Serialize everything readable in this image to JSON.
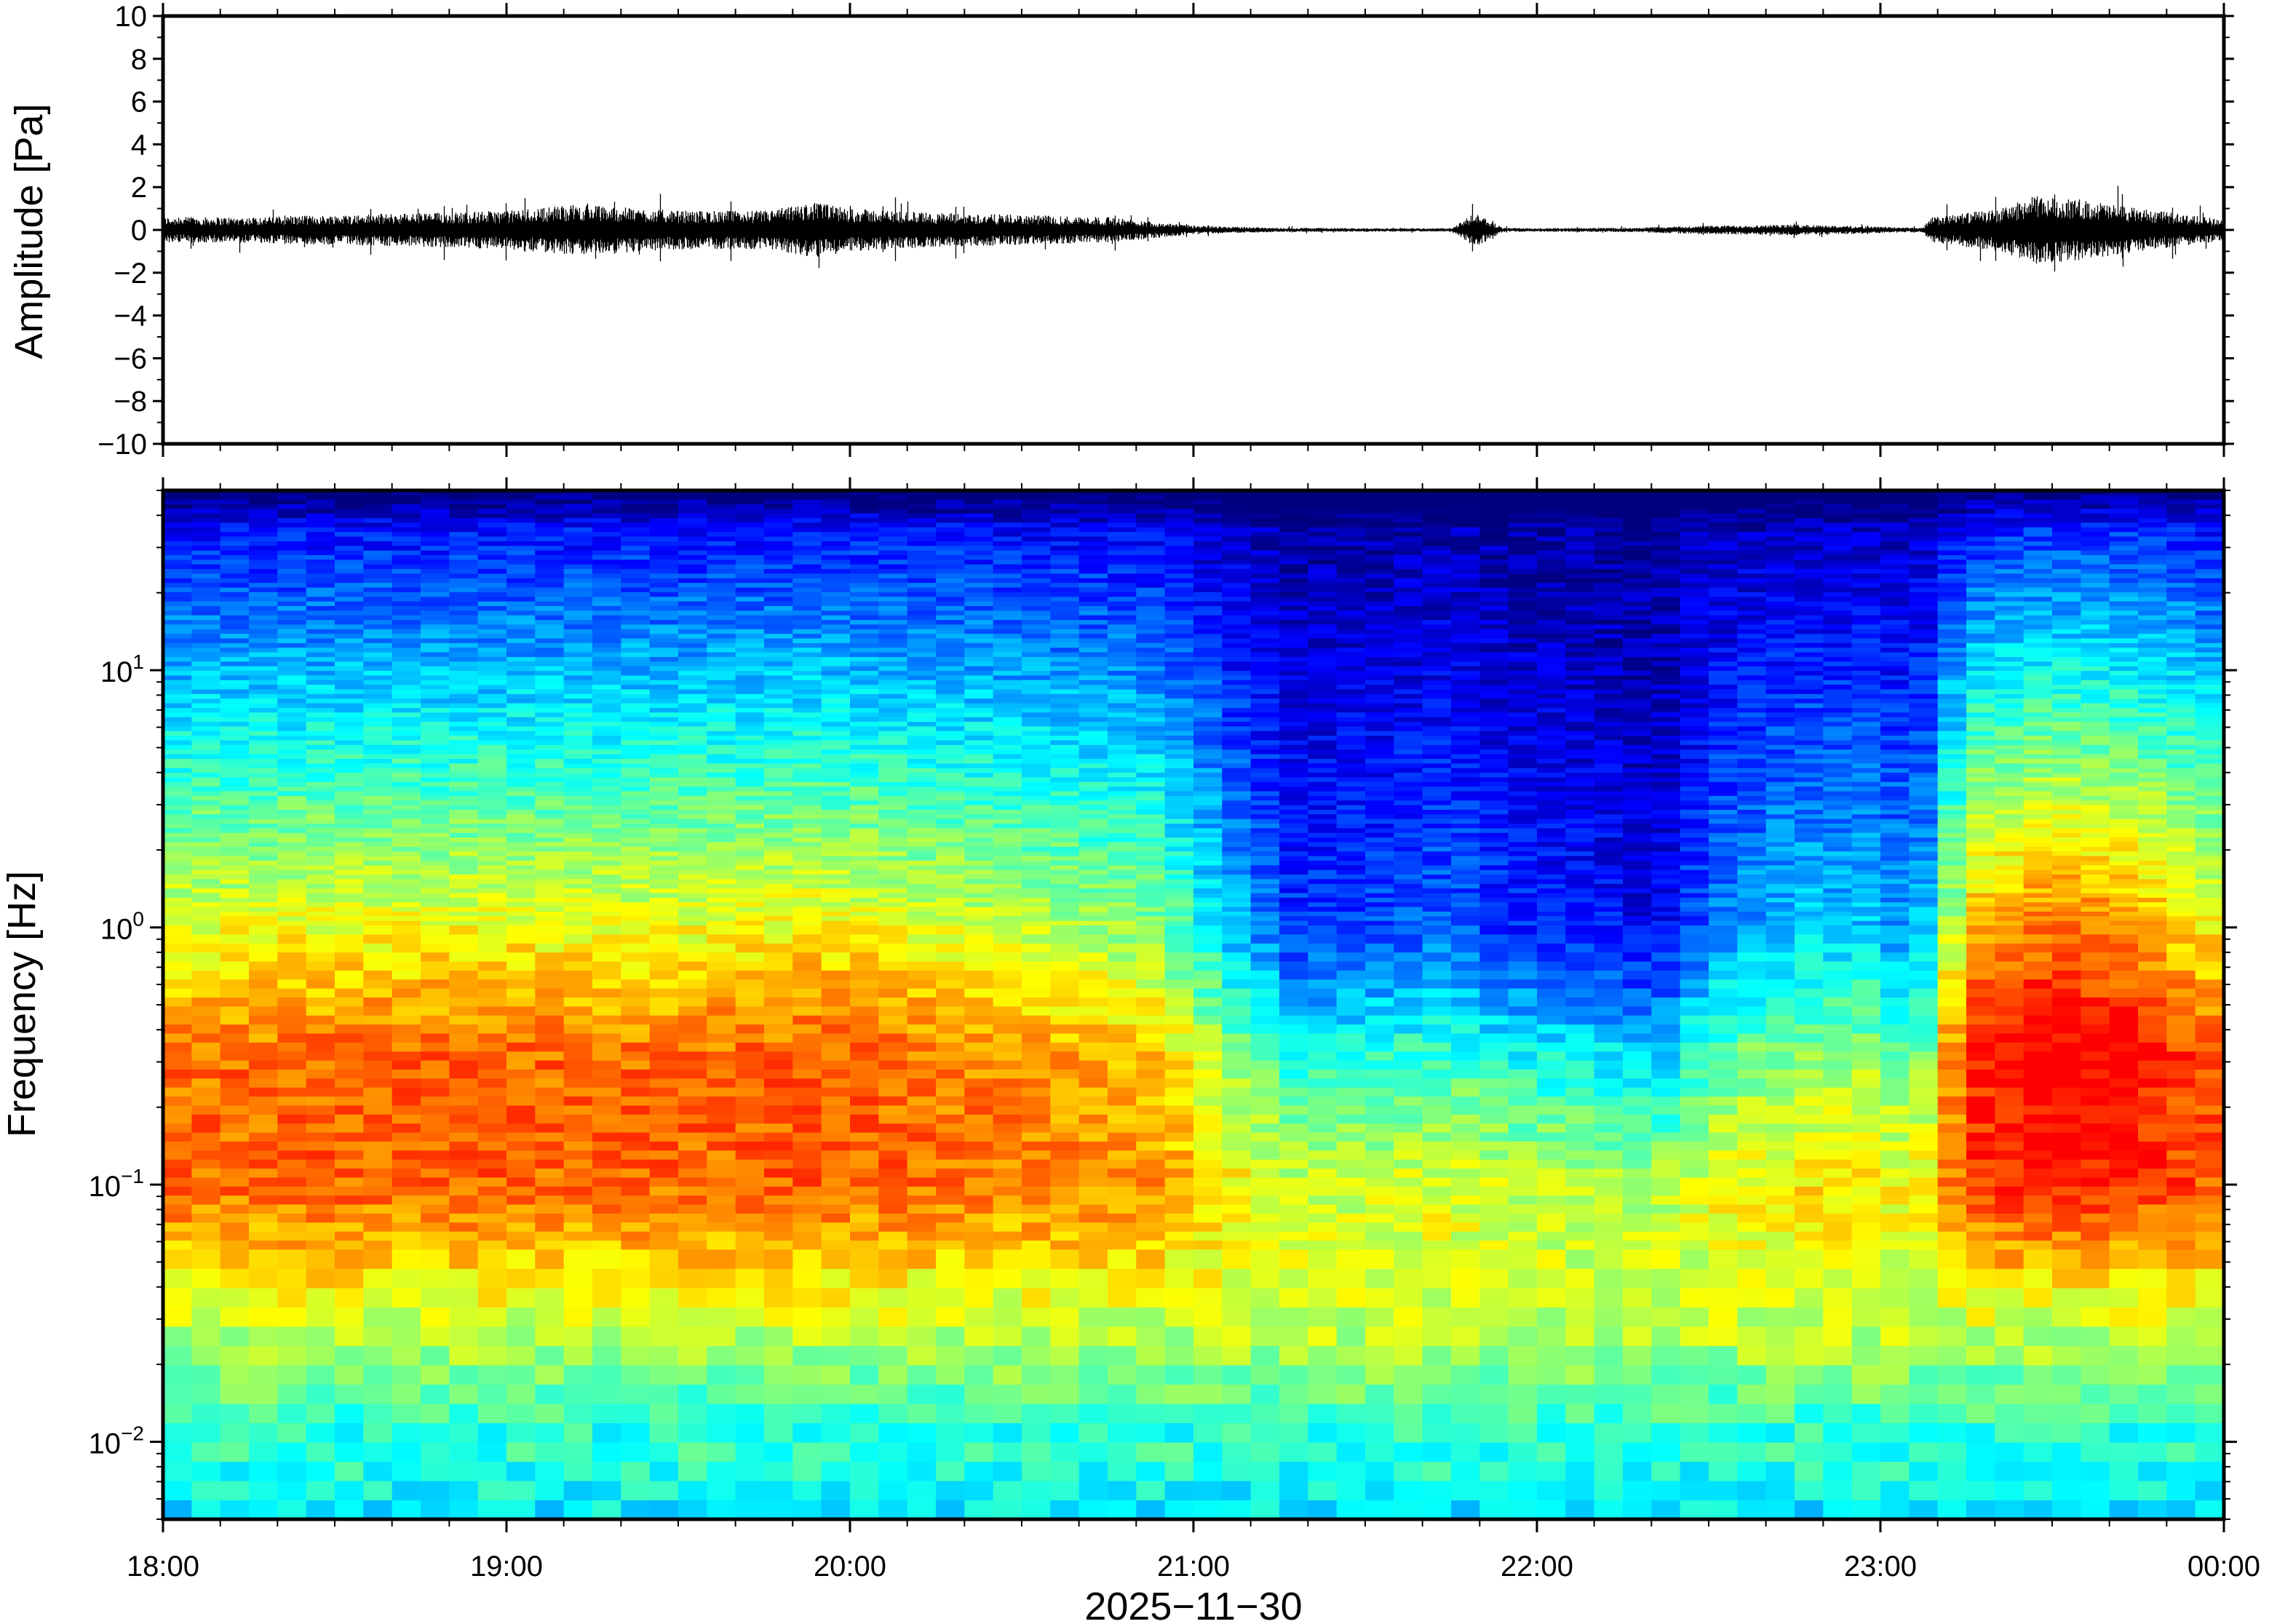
{
  "chart_data": [
    {
      "type": "line",
      "panel": "waveform",
      "ylabel": "Amplitude [Pa]",
      "ylim": [
        -10,
        10
      ],
      "yticks": [
        10,
        8,
        6,
        4,
        2,
        0,
        -2,
        -4,
        -6,
        -8,
        -10
      ],
      "ytick_labels": [
        "10",
        "8",
        "6",
        "4",
        "2",
        "0",
        "−2",
        "−4",
        "−6",
        "−8",
        "−10"
      ],
      "xlim": [
        "18:00",
        "00:00"
      ],
      "trace_color": "#000000",
      "envelope": {
        "x_hours": [
          18.0,
          18.25,
          18.5,
          18.75,
          19.0,
          19.2,
          19.5,
          19.75,
          19.9,
          20.0,
          20.25,
          20.5,
          20.75,
          21.0,
          21.25,
          21.5,
          21.75,
          21.82,
          21.9,
          22.0,
          22.25,
          22.5,
          22.75,
          23.0,
          23.12,
          23.15,
          23.35,
          23.45,
          23.6,
          23.75,
          23.9,
          24.0
        ],
        "amplitude_pa": [
          0.6,
          0.6,
          0.7,
          0.8,
          0.9,
          1.2,
          0.9,
          0.9,
          1.3,
          1.0,
          0.8,
          0.7,
          0.6,
          0.2,
          0.1,
          0.08,
          0.08,
          0.8,
          0.1,
          0.08,
          0.1,
          0.2,
          0.25,
          0.15,
          0.1,
          0.6,
          1.0,
          1.6,
          1.4,
          1.0,
          0.7,
          0.5
        ]
      }
    },
    {
      "type": "heatmap",
      "panel": "spectrogram",
      "ylabel": "Frequency [Hz]",
      "xlabel": "2025−11−30",
      "yscale": "log",
      "ylim": [
        0.005,
        50
      ],
      "ytick_labels": [
        {
          "base": "10",
          "exp": "−2",
          "value": 0.01
        },
        {
          "base": "10",
          "exp": "−1",
          "value": 0.1
        },
        {
          "base": "10",
          "exp": "0",
          "value": 1
        },
        {
          "base": "10",
          "exp": "1",
          "value": 10
        }
      ],
      "xticks": [
        "18:00",
        "19:00",
        "20:00",
        "21:00",
        "22:00",
        "23:00",
        "00:00"
      ],
      "colormap": "jet",
      "colormap_stops": [
        "#00007f",
        "#0000ff",
        "#007fff",
        "#00ffff",
        "#7fff7f",
        "#ffff00",
        "#ff7f00",
        "#ff0000"
      ],
      "description_level_scale": "0 = dark blue (low power), 1 = red (high power)",
      "time_profile": {
        "x_hours": [
          18.0,
          18.5,
          19.0,
          19.5,
          19.9,
          20.25,
          20.6,
          20.9,
          21.1,
          21.3,
          21.55,
          21.75,
          21.85,
          22.0,
          22.2,
          22.35,
          22.5,
          22.75,
          23.0,
          23.1,
          23.25,
          23.5,
          23.75,
          24.0
        ],
        "activity": [
          0.78,
          0.8,
          0.8,
          0.79,
          0.82,
          0.77,
          0.72,
          0.66,
          0.42,
          0.22,
          0.26,
          0.3,
          0.24,
          0.2,
          0.18,
          0.12,
          0.32,
          0.42,
          0.42,
          0.3,
          0.9,
          1.0,
          0.95,
          0.8
        ]
      }
    }
  ]
}
